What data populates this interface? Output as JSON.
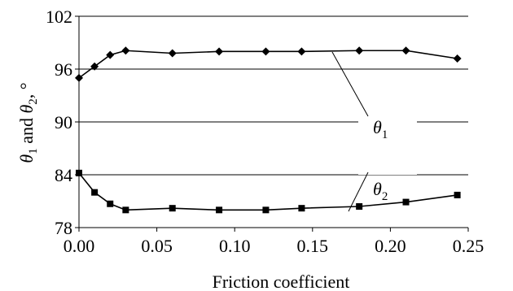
{
  "chart_data": {
    "type": "line",
    "title": "",
    "xlabel": "Friction coefficient",
    "ylabel": {
      "parts": [
        {
          "text": "θ",
          "style": "italic"
        },
        {
          "text": "1",
          "style": "sub"
        },
        {
          "text": " and ",
          "style": "normal"
        },
        {
          "text": "θ",
          "style": "italic"
        },
        {
          "text": "2",
          "style": "sub"
        },
        {
          "text": ", °",
          "style": "normal"
        }
      ]
    },
    "xlim": [
      0,
      0.25
    ],
    "ylim": [
      78,
      102
    ],
    "xticks": [
      "0.00",
      "0.05",
      "0.10",
      "0.15",
      "0.20",
      "0.25"
    ],
    "yticks": [
      "78",
      "84",
      "90",
      "96",
      "102"
    ],
    "grid": {
      "horizontal": true,
      "vertical": false
    },
    "legend": "none",
    "series": [
      {
        "marker": "diamond",
        "color": "#000000",
        "x": [
          0,
          0.01,
          0.02,
          0.03,
          0.06,
          0.09,
          0.12,
          0.143,
          0.18,
          0.21,
          0.243
        ],
        "y": [
          95.0,
          96.3,
          97.6,
          98.1,
          97.8,
          98.0,
          98.0,
          98.0,
          98.1,
          98.1,
          97.2
        ]
      },
      {
        "marker": "square",
        "color": "#000000",
        "x": [
          0,
          0.01,
          0.02,
          0.03,
          0.06,
          0.09,
          0.12,
          0.143,
          0.18,
          0.21,
          0.243
        ],
        "y": [
          84.2,
          82.0,
          80.7,
          80.0,
          80.2,
          80.0,
          80.0,
          80.2,
          80.4,
          80.9,
          81.7
        ]
      }
    ],
    "annotations": [
      {
        "symbol": "θ",
        "sub": "1",
        "series_index": 0
      },
      {
        "symbol": "θ",
        "sub": "2",
        "series_index": 1
      }
    ]
  }
}
